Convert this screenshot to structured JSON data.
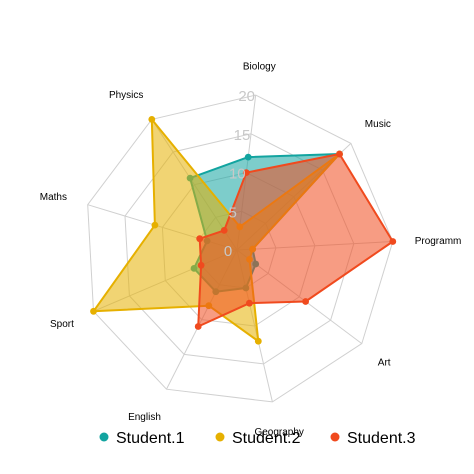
{
  "chart_data": {
    "type": "radar",
    "axes": [
      "Biology",
      "Music",
      "Programm",
      "Art",
      "Geography",
      "English",
      "Sport",
      "Maths",
      "Physics"
    ],
    "range": [
      0,
      20
    ],
    "ticks": [
      "0",
      "5",
      "10",
      "15",
      "20"
    ],
    "grid": true,
    "legend_position": "bottom",
    "series": [
      {
        "name": "Student.1",
        "color": "#12A4A0",
        "values": [
          12,
          18,
          2,
          3,
          5,
          6,
          6,
          4,
          11
        ]
      },
      {
        "name": "Student.2",
        "color": "#E6B000",
        "values": [
          3,
          18,
          2,
          2,
          12,
          8,
          20,
          11,
          20
        ]
      },
      {
        "name": "Student.3",
        "color": "#F04A1E",
        "values": [
          10,
          18,
          20,
          11,
          7,
          11,
          5,
          5,
          3
        ]
      }
    ]
  }
}
